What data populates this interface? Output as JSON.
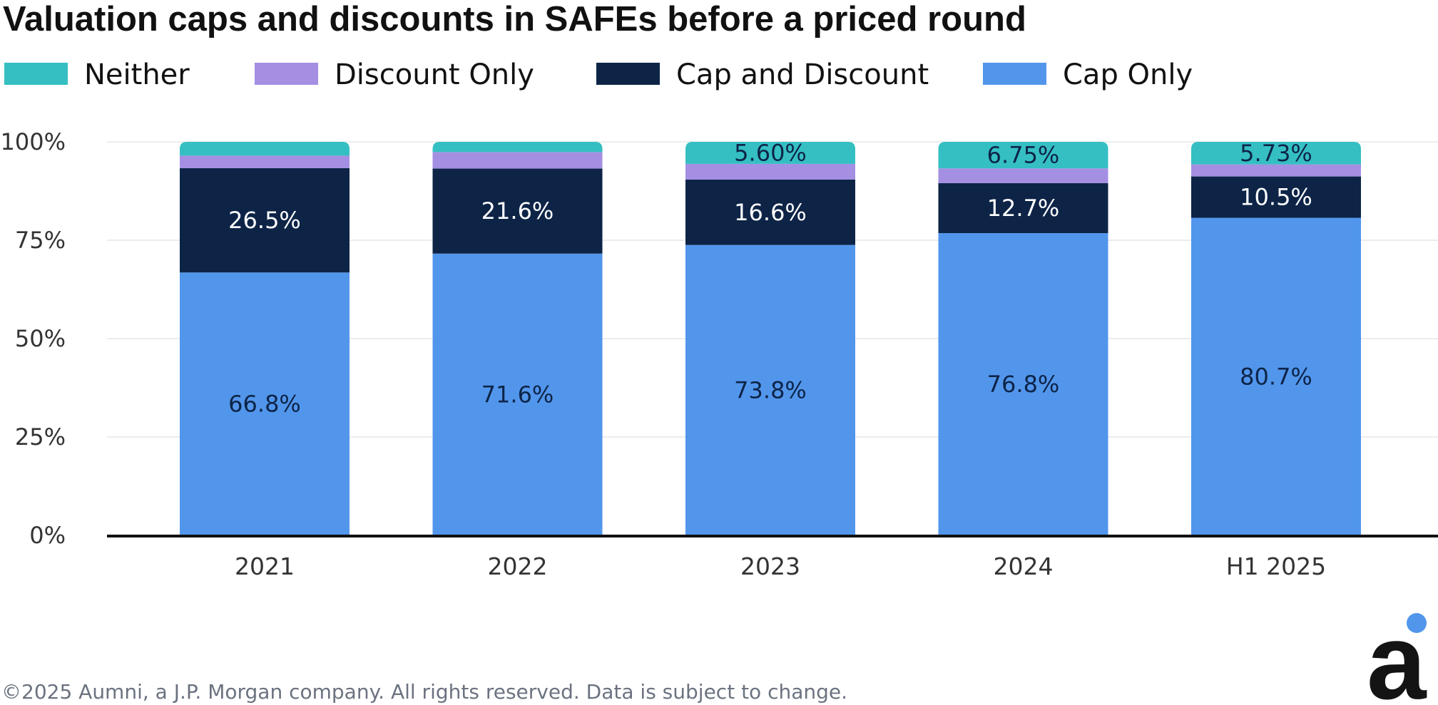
{
  "chart_data": {
    "type": "bar",
    "stacked": true,
    "title": "Valuation caps and discounts in SAFEs before a priced round",
    "categories": [
      "2021",
      "2022",
      "2023",
      "2024",
      "H1 2025"
    ],
    "ylim": [
      0,
      100
    ],
    "yticks": [
      "0%",
      "25%",
      "50%",
      "75%",
      "100%"
    ],
    "grid": true,
    "legend_position": "top",
    "legend_order": [
      "Neither",
      "Discount Only",
      "Cap and Discount",
      "Cap Only"
    ],
    "series": [
      {
        "name": "Cap Only",
        "color": "#5296ec",
        "label_color": "#0d2447",
        "values": [
          66.8,
          71.6,
          73.8,
          76.8,
          80.7
        ],
        "labels": [
          "66.8%",
          "71.6%",
          "73.8%",
          "76.8%",
          "80.7%"
        ]
      },
      {
        "name": "Cap and Discount",
        "color": "#0d2447",
        "label_color": "#ffffff",
        "values": [
          26.5,
          21.6,
          16.6,
          12.7,
          10.5
        ],
        "labels": [
          "26.5%",
          "21.6%",
          "16.6%",
          "12.7%",
          "10.5%"
        ]
      },
      {
        "name": "Discount Only",
        "color": "#a48fe3",
        "label_color": "#ffffff",
        "values": [
          3.2,
          4.2,
          4.0,
          3.75,
          3.07
        ],
        "labels": [
          "",
          "",
          "",
          "",
          ""
        ]
      },
      {
        "name": "Neither",
        "color": "#35bfc3",
        "label_color": "#0d2447",
        "values": [
          3.5,
          2.6,
          5.6,
          6.75,
          5.73
        ],
        "labels": [
          "",
          "",
          "5.60%",
          "6.75%",
          "5.73%"
        ]
      }
    ]
  },
  "footer": {
    "copyright": "©2025 Aumni, a J.P. Morgan company. All rights reserved. Data is subject to change."
  },
  "logo": {
    "letter": "a",
    "dot_color": "#5296ec",
    "color": "#141414"
  }
}
